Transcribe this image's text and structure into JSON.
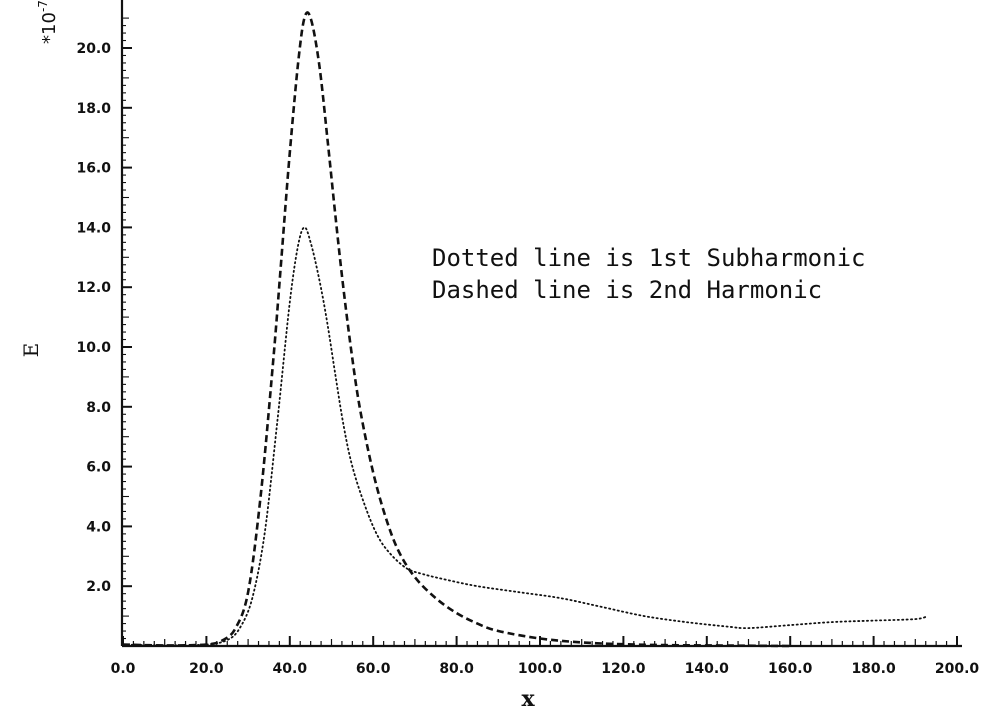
{
  "chart_data": {
    "type": "line",
    "title": "",
    "xlabel": "x",
    "ylabel": "E",
    "y_scale_note": "*10",
    "y_scale_exponent": "-7",
    "xlim": [
      0,
      200
    ],
    "ylim": [
      0,
      21
    ],
    "grid": false,
    "x_ticks": [
      "0.0",
      "20.0",
      "40.0",
      "60.0",
      "80.0",
      "100.0",
      "120.0",
      "140.0",
      "160.0",
      "180.0",
      "200.0"
    ],
    "y_ticks": [
      "2.0",
      "4.0",
      "6.0",
      "8.0",
      "10.0",
      "12.0",
      "14.0",
      "16.0",
      "18.0",
      "20.0"
    ],
    "annotations": [
      "Dotted line is 1st Subharmonic",
      "Dashed line is 2nd Harmonic"
    ],
    "series": [
      {
        "style": "dotted",
        "color": "#111111",
        "x": [
          0,
          10,
          20,
          25,
          28,
          31,
          34,
          37,
          40,
          42,
          43.5,
          45,
          47,
          49,
          51,
          53,
          55,
          58,
          61,
          64,
          68,
          72,
          78,
          85,
          95,
          105,
          115,
          125,
          135,
          145,
          150,
          160,
          170,
          180,
          190,
          193
        ],
        "y": [
          0.05,
          0.02,
          0.05,
          0.2,
          0.6,
          1.6,
          3.8,
          7.5,
          11.5,
          13.4,
          14.0,
          13.5,
          12.3,
          10.8,
          9.0,
          7.3,
          6.0,
          4.7,
          3.7,
          3.1,
          2.6,
          2.4,
          2.2,
          2.0,
          1.8,
          1.6,
          1.3,
          1.0,
          0.8,
          0.65,
          0.6,
          0.7,
          0.8,
          0.85,
          0.9,
          1.0
        ]
      },
      {
        "style": "dashed",
        "color": "#111111",
        "x": [
          0,
          10,
          20,
          24,
          27,
          30,
          33,
          36,
          38,
          40,
          42,
          43.5,
          45,
          47,
          49,
          51,
          53,
          55,
          57,
          60,
          63,
          66,
          70,
          75,
          80,
          85,
          90,
          100,
          110,
          120,
          130,
          140,
          150,
          160
        ],
        "y": [
          0.05,
          0.02,
          0.05,
          0.2,
          0.6,
          1.8,
          5.0,
          9.5,
          13.0,
          16.5,
          19.5,
          21.0,
          21.0,
          19.5,
          17.0,
          14.3,
          11.8,
          9.6,
          7.8,
          5.8,
          4.3,
          3.2,
          2.3,
          1.6,
          1.1,
          0.75,
          0.5,
          0.25,
          0.12,
          0.06,
          0.03,
          0.02,
          0.01,
          0.0
        ]
      }
    ]
  }
}
